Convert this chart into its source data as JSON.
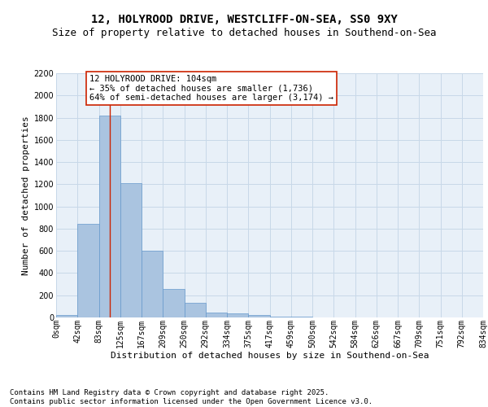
{
  "title1": "12, HOLYROOD DRIVE, WESTCLIFF-ON-SEA, SS0 9XY",
  "title2": "Size of property relative to detached houses in Southend-on-Sea",
  "xlabel": "Distribution of detached houses by size in Southend-on-Sea",
  "ylabel": "Number of detached properties",
  "bar_values": [
    20,
    845,
    1820,
    1210,
    600,
    255,
    135,
    45,
    35,
    25,
    5,
    10,
    0,
    0,
    0,
    0,
    0,
    0,
    0,
    0
  ],
  "x_labels": [
    "0sqm",
    "42sqm",
    "83sqm",
    "125sqm",
    "167sqm",
    "209sqm",
    "250sqm",
    "292sqm",
    "334sqm",
    "375sqm",
    "417sqm",
    "459sqm",
    "500sqm",
    "542sqm",
    "584sqm",
    "626sqm",
    "667sqm",
    "709sqm",
    "751sqm",
    "792sqm",
    "834sqm"
  ],
  "bar_color": "#aac4e0",
  "bar_edge_color": "#6699cc",
  "vline_color": "#cc2200",
  "annotation_box_text": "12 HOLYROOD DRIVE: 104sqm\n← 35% of detached houses are smaller (1,736)\n64% of semi-detached houses are larger (3,174) →",
  "annotation_box_color": "#cc2200",
  "annotation_box_fill": "#ffffff",
  "ylim": [
    0,
    2200
  ],
  "yticks": [
    0,
    200,
    400,
    600,
    800,
    1000,
    1200,
    1400,
    1600,
    1800,
    2000,
    2200
  ],
  "grid_color": "#c8d8e8",
  "background_color": "#e8f0f8",
  "footer_text": "Contains HM Land Registry data © Crown copyright and database right 2025.\nContains public sector information licensed under the Open Government Licence v3.0.",
  "title_fontsize": 10,
  "subtitle_fontsize": 9,
  "axis_label_fontsize": 8,
  "tick_fontsize": 7,
  "footer_fontsize": 6.5,
  "annotation_fontsize": 7.5
}
